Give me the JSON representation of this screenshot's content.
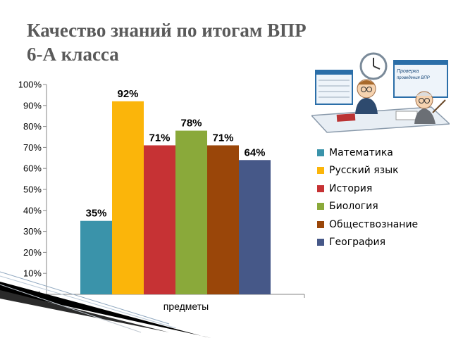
{
  "title": {
    "line1": "Качество знаний по итогам ВПР",
    "line2": "6-А класса"
  },
  "chart_data": {
    "type": "bar",
    "categories": [
      "предметы"
    ],
    "xlabel": "предметы",
    "ylabel": "",
    "ylim": [
      0,
      100
    ],
    "yticks": [
      "0%",
      "10%",
      "20%",
      "30%",
      "40%",
      "50%",
      "60%",
      "70%",
      "80%",
      "90%",
      "100%"
    ],
    "grid": false,
    "legend_position": "right",
    "series": [
      {
        "name": "Математика",
        "values": [
          35
        ],
        "label": "35%",
        "color": "#3a93aa"
      },
      {
        "name": "Русский язык",
        "values": [
          92
        ],
        "label": "92%",
        "color": "#fbb50a"
      },
      {
        "name": "История",
        "values": [
          71
        ],
        "label": "71%",
        "color": "#c63234"
      },
      {
        "name": "Биология",
        "values": [
          78
        ],
        "label": "78%",
        "color": "#8aa93a"
      },
      {
        "name": "Обществознание",
        "values": [
          71
        ],
        "label": "71%",
        "color": "#9a4609"
      },
      {
        "name": "География",
        "values": [
          64
        ],
        "label": "64%",
        "color": "#465888"
      }
    ]
  },
  "illustration": {
    "board_text_1": "Проверка",
    "board_text_2": "проведения ВПР",
    "icon": "teachers-classroom-illustration"
  }
}
